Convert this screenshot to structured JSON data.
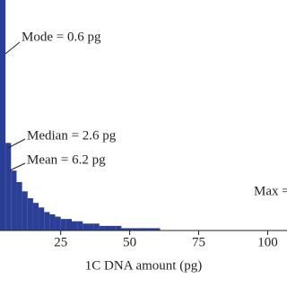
{
  "chart_data": {
    "type": "histogram",
    "x_label": "1C DNA amount (pg)",
    "color": "#2b3f96",
    "bins": [
      3,
      5,
      7,
      9,
      11,
      13,
      15,
      17,
      19,
      21,
      23,
      25,
      27,
      29,
      31,
      33,
      35,
      37,
      39,
      41,
      43,
      45,
      47,
      49,
      51,
      53,
      55,
      57,
      59,
      61
    ],
    "counts": [
      100,
      38,
      26,
      21,
      17,
      14,
      12,
      10,
      8,
      7,
      6,
      5,
      5,
      4,
      4,
      3,
      3,
      3,
      2,
      2,
      2,
      2,
      1,
      1,
      1,
      1,
      1,
      1,
      1
    ],
    "xlim": [
      3,
      107
    ],
    "xticks": [
      25,
      50,
      75,
      100
    ],
    "ylim": [
      0,
      100
    ],
    "annotations": [
      "Mode = 0.6 pg",
      "Median = 2.6 pg",
      "Mean = 6.2 pg",
      "Max ="
    ]
  }
}
